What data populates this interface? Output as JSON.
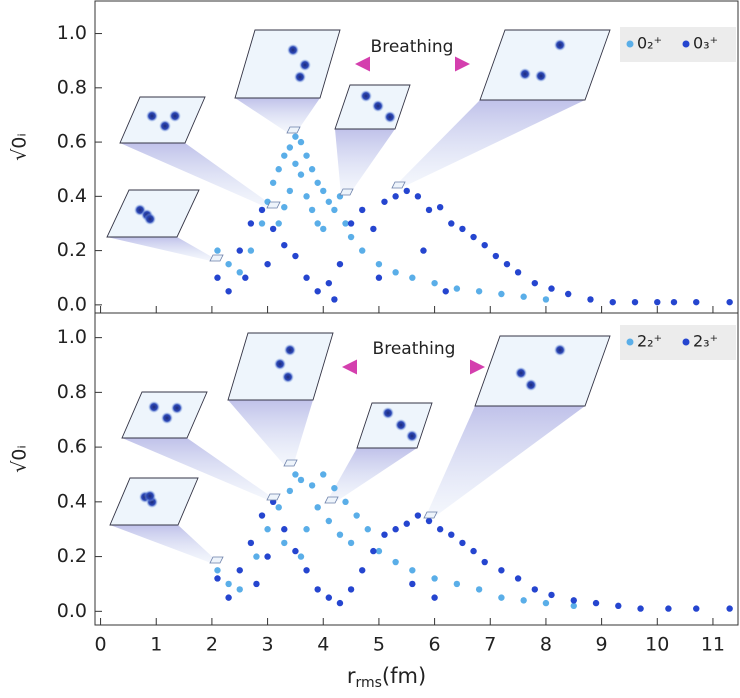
{
  "chart_data": [
    {
      "type": "scatter",
      "y_label": "√0ᵢ",
      "annotation": "Breathing",
      "xlim": [
        -0.1,
        11.45
      ],
      "xticks": [
        0,
        1,
        2,
        3,
        4,
        5,
        6,
        7,
        8,
        9,
        10,
        11
      ],
      "ylim": [
        -0.03,
        1.12
      ],
      "yticks": [
        {
          "value": 0,
          "label": "0.0"
        },
        0.2,
        0.4,
        0.6,
        0.8,
        {
          "value": 1,
          "label": "1.0"
        }
      ],
      "legend": "upper right",
      "series": [
        {
          "name": "0₂⁺",
          "color": "#5aaee8",
          "x": [
            2.1,
            2.3,
            2.5,
            2.7,
            2.9,
            3.0,
            3.1,
            3.2,
            3.3,
            3.4,
            3.5,
            3.6,
            3.7,
            3.8,
            3.9,
            4.0,
            4.1,
            4.2,
            4.3,
            4.4,
            3.2,
            3.4,
            3.6,
            3.8,
            4.0,
            3.5,
            3.3,
            3.7,
            4.5,
            4.7,
            5.0,
            5.3,
            5.6,
            6.0,
            6.4,
            6.8,
            7.2,
            7.6,
            8.0,
            3.9
          ],
          "values": [
            0.2,
            0.15,
            0.12,
            0.2,
            0.3,
            0.38,
            0.45,
            0.5,
            0.55,
            0.58,
            0.62,
            0.6,
            0.55,
            0.5,
            0.45,
            0.42,
            0.38,
            0.35,
            0.4,
            0.3,
            0.3,
            0.42,
            0.48,
            0.35,
            0.28,
            0.52,
            0.36,
            0.4,
            0.25,
            0.2,
            0.15,
            0.12,
            0.1,
            0.08,
            0.06,
            0.05,
            0.04,
            0.03,
            0.02,
            0.3
          ]
        },
        {
          "name": "0₃⁺",
          "color": "#2545cf",
          "x": [
            2.1,
            2.3,
            2.5,
            2.7,
            2.9,
            3.1,
            3.3,
            3.5,
            3.7,
            3.9,
            4.1,
            4.3,
            4.5,
            4.7,
            4.9,
            5.1,
            5.3,
            5.5,
            5.7,
            5.9,
            6.1,
            6.3,
            6.5,
            6.7,
            6.9,
            7.1,
            7.3,
            7.5,
            7.8,
            8.1,
            8.4,
            8.8,
            9.2,
            9.6,
            10.0,
            10.3,
            10.7,
            11.3,
            5.0,
            5.8,
            6.2,
            4.2,
            3.0,
            2.6
          ],
          "values": [
            0.1,
            0.05,
            0.2,
            0.3,
            0.35,
            0.28,
            0.22,
            0.18,
            0.1,
            0.05,
            0.08,
            0.15,
            0.3,
            0.35,
            0.28,
            0.38,
            0.4,
            0.42,
            0.4,
            0.35,
            0.36,
            0.3,
            0.28,
            0.25,
            0.22,
            0.18,
            0.15,
            0.12,
            0.08,
            0.06,
            0.04,
            0.02,
            0.01,
            0.01,
            0.01,
            0.01,
            0.01,
            0.01,
            0.1,
            0.2,
            0.05,
            0.02,
            0.15,
            0.1
          ]
        }
      ]
    },
    {
      "type": "scatter",
      "y_label": "√0ᵢ",
      "annotation": "Breathing",
      "x_label": {
        "main": "r",
        "sub": "rms",
        "unit": "(fm)"
      },
      "xlim": [
        -0.1,
        11.45
      ],
      "xticks": [
        0,
        1,
        2,
        3,
        4,
        5,
        6,
        7,
        8,
        9,
        10,
        11
      ],
      "ylim": [
        -0.05,
        1.09
      ],
      "yticks": [
        {
          "value": 0,
          "label": "0.0"
        },
        0.2,
        0.4,
        0.6,
        0.8,
        {
          "value": 1,
          "label": "1.0"
        }
      ],
      "legend": "upper right",
      "series": [
        {
          "name": "2₂⁺",
          "color": "#5aaee8",
          "x": [
            2.1,
            2.3,
            2.5,
            2.8,
            3.0,
            3.2,
            3.4,
            3.5,
            3.6,
            3.8,
            4.0,
            4.2,
            4.4,
            4.6,
            4.8,
            3.3,
            3.7,
            3.9,
            4.1,
            4.3,
            4.5,
            3.6,
            5.0,
            5.3,
            5.6,
            6.0,
            6.4,
            6.8,
            7.2,
            7.6,
            8.0,
            8.5
          ],
          "values": [
            0.15,
            0.1,
            0.08,
            0.2,
            0.3,
            0.38,
            0.44,
            0.5,
            0.48,
            0.46,
            0.5,
            0.45,
            0.4,
            0.35,
            0.3,
            0.25,
            0.3,
            0.38,
            0.33,
            0.28,
            0.25,
            0.2,
            0.22,
            0.18,
            0.15,
            0.12,
            0.1,
            0.08,
            0.05,
            0.04,
            0.03,
            0.02
          ]
        },
        {
          "name": "2₃⁺",
          "color": "#2545cf",
          "x": [
            2.1,
            2.3,
            2.5,
            2.7,
            2.9,
            3.1,
            3.3,
            3.5,
            3.7,
            3.9,
            4.1,
            4.3,
            4.5,
            4.7,
            4.9,
            5.1,
            5.3,
            5.5,
            5.7,
            5.9,
            6.1,
            6.3,
            6.5,
            6.7,
            6.9,
            7.2,
            7.5,
            7.8,
            8.1,
            8.5,
            8.9,
            9.3,
            9.7,
            10.2,
            10.7,
            11.3,
            3.0,
            2.8,
            5.6,
            6.0
          ],
          "values": [
            0.12,
            0.05,
            0.15,
            0.25,
            0.35,
            0.4,
            0.3,
            0.22,
            0.15,
            0.08,
            0.05,
            0.03,
            0.08,
            0.15,
            0.22,
            0.28,
            0.3,
            0.32,
            0.35,
            0.33,
            0.3,
            0.28,
            0.25,
            0.22,
            0.18,
            0.15,
            0.12,
            0.08,
            0.06,
            0.04,
            0.03,
            0.02,
            0.01,
            0.01,
            0.01,
            0.01,
            0.2,
            0.1,
            0.1,
            0.05
          ]
        }
      ]
    }
  ]
}
